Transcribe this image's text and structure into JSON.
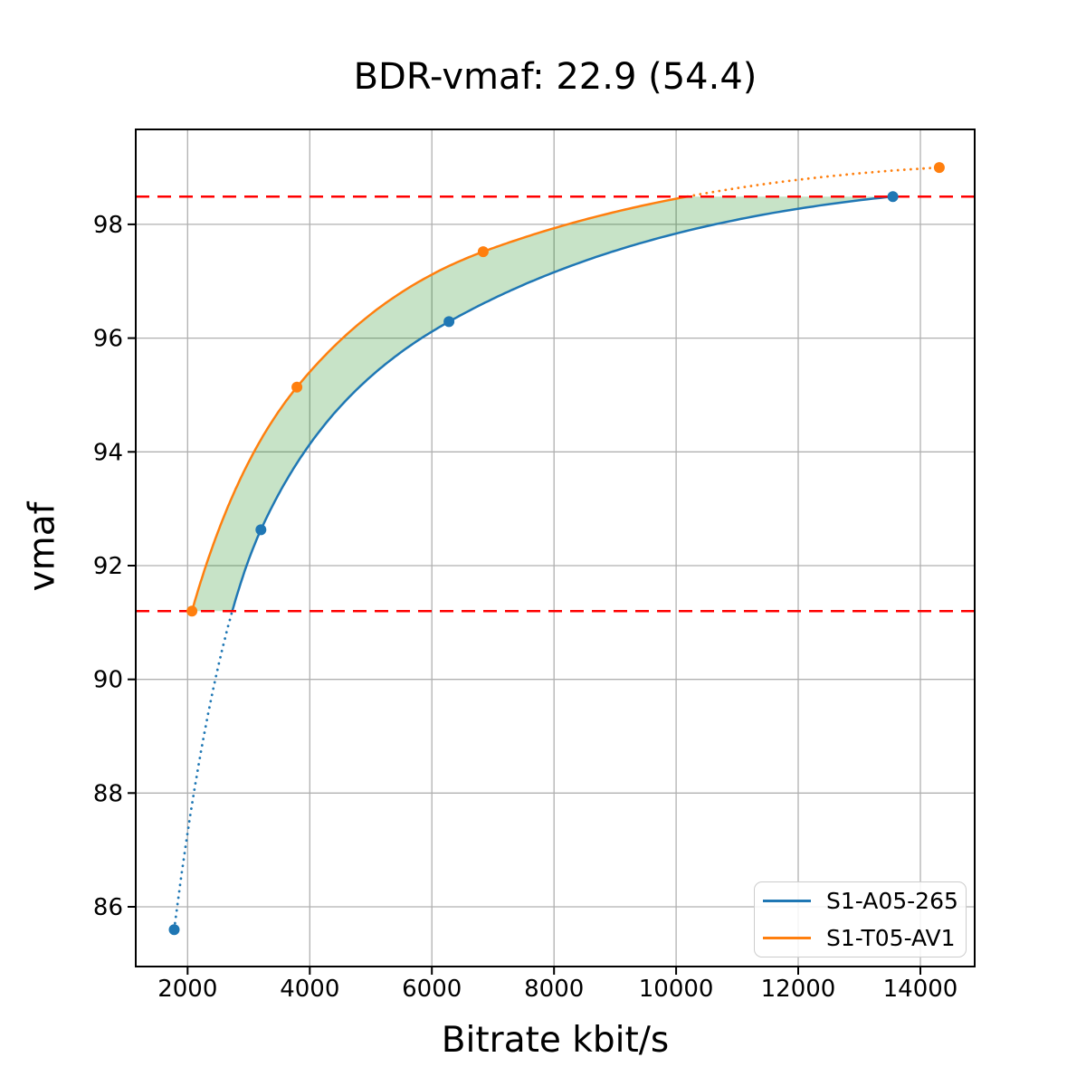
{
  "chart_data": {
    "type": "line",
    "title": "BDR-vmaf: 22.9 (54.4)",
    "xlabel": "Bitrate kbit/s",
    "ylabel": "vmaf",
    "xlim": [
      1150,
      14890
    ],
    "ylim": [
      84.95,
      99.67
    ],
    "xticks": [
      2000,
      4000,
      6000,
      8000,
      10000,
      12000,
      14000
    ],
    "yticks": [
      86,
      88,
      90,
      92,
      94,
      96,
      98
    ],
    "grid": true,
    "grid_color": "#b0b0b0",
    "legend_position": "lower right",
    "series": [
      {
        "name": "S1-A05-265",
        "color": "#1f77b4",
        "points": [
          [
            1780,
            85.6
          ],
          [
            3200,
            92.63
          ],
          [
            6280,
            96.29
          ],
          [
            13550,
            98.49
          ]
        ],
        "dotted_below_vmaf": 91.2
      },
      {
        "name": "S1-T05-AV1",
        "color": "#ff7f0e",
        "points": [
          [
            2070,
            91.2
          ],
          [
            3790,
            95.14
          ],
          [
            6840,
            97.52
          ],
          [
            14310,
            99.0
          ]
        ],
        "dotted_above_vmaf": 98.49
      }
    ],
    "bd_interval_lines": {
      "low": 91.2,
      "high": 98.49,
      "color": "#ff0000",
      "style": "dashed"
    },
    "shaded_region": {
      "between": [
        "S1-T05-AV1",
        "S1-A05-265"
      ],
      "from_vmaf": 91.2,
      "to_vmaf": 98.49,
      "color": "#008000",
      "opacity": 0.22
    }
  }
}
